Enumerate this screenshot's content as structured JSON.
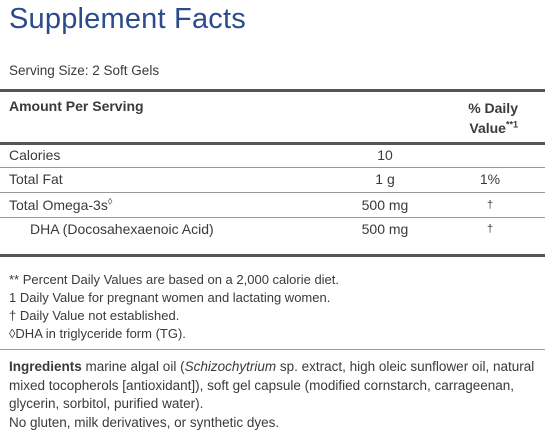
{
  "title": "Supplement Facts",
  "serving_size": "Serving Size: 2 Soft Gels",
  "header": {
    "amount_per_serving": "Amount Per Serving",
    "daily_value_line1": "% Daily",
    "daily_value_line2": "Value",
    "daily_value_mark": "**1"
  },
  "rows": [
    {
      "name": "Calories",
      "amount": "10",
      "dv": ""
    },
    {
      "name": "Total Fat",
      "amount": "1 g",
      "dv": "1%"
    },
    {
      "name": "Total Omega-3s",
      "name_mark": "◊",
      "amount": "500 mg",
      "dv": "†"
    },
    {
      "name": "DHA (Docosahexaenoic Acid)",
      "amount": "500 mg",
      "dv": "†"
    }
  ],
  "footnotes": [
    "** Percent Daily Values are based on a 2,000 calorie diet.",
    "1 Daily Value for pregnant women and lactating women.",
    "† Daily Value not established.",
    "◊DHA in triglyceride form (TG)."
  ],
  "ingredients": {
    "label": "Ingredients",
    "text_1": " marine algal oil (",
    "italic": "Schizochytrium",
    "text_2": " sp. extract, high oleic sunflower oil, natural mixed tocopherols [antioxidant]), soft gel capsule (modified cornstarch, carrageenan, glycerin, sorbitol, purified water).",
    "note": "No gluten, milk derivatives, or synthetic dyes."
  },
  "colors": {
    "title": "#2b4b8c",
    "text": "#3a3a3a"
  }
}
